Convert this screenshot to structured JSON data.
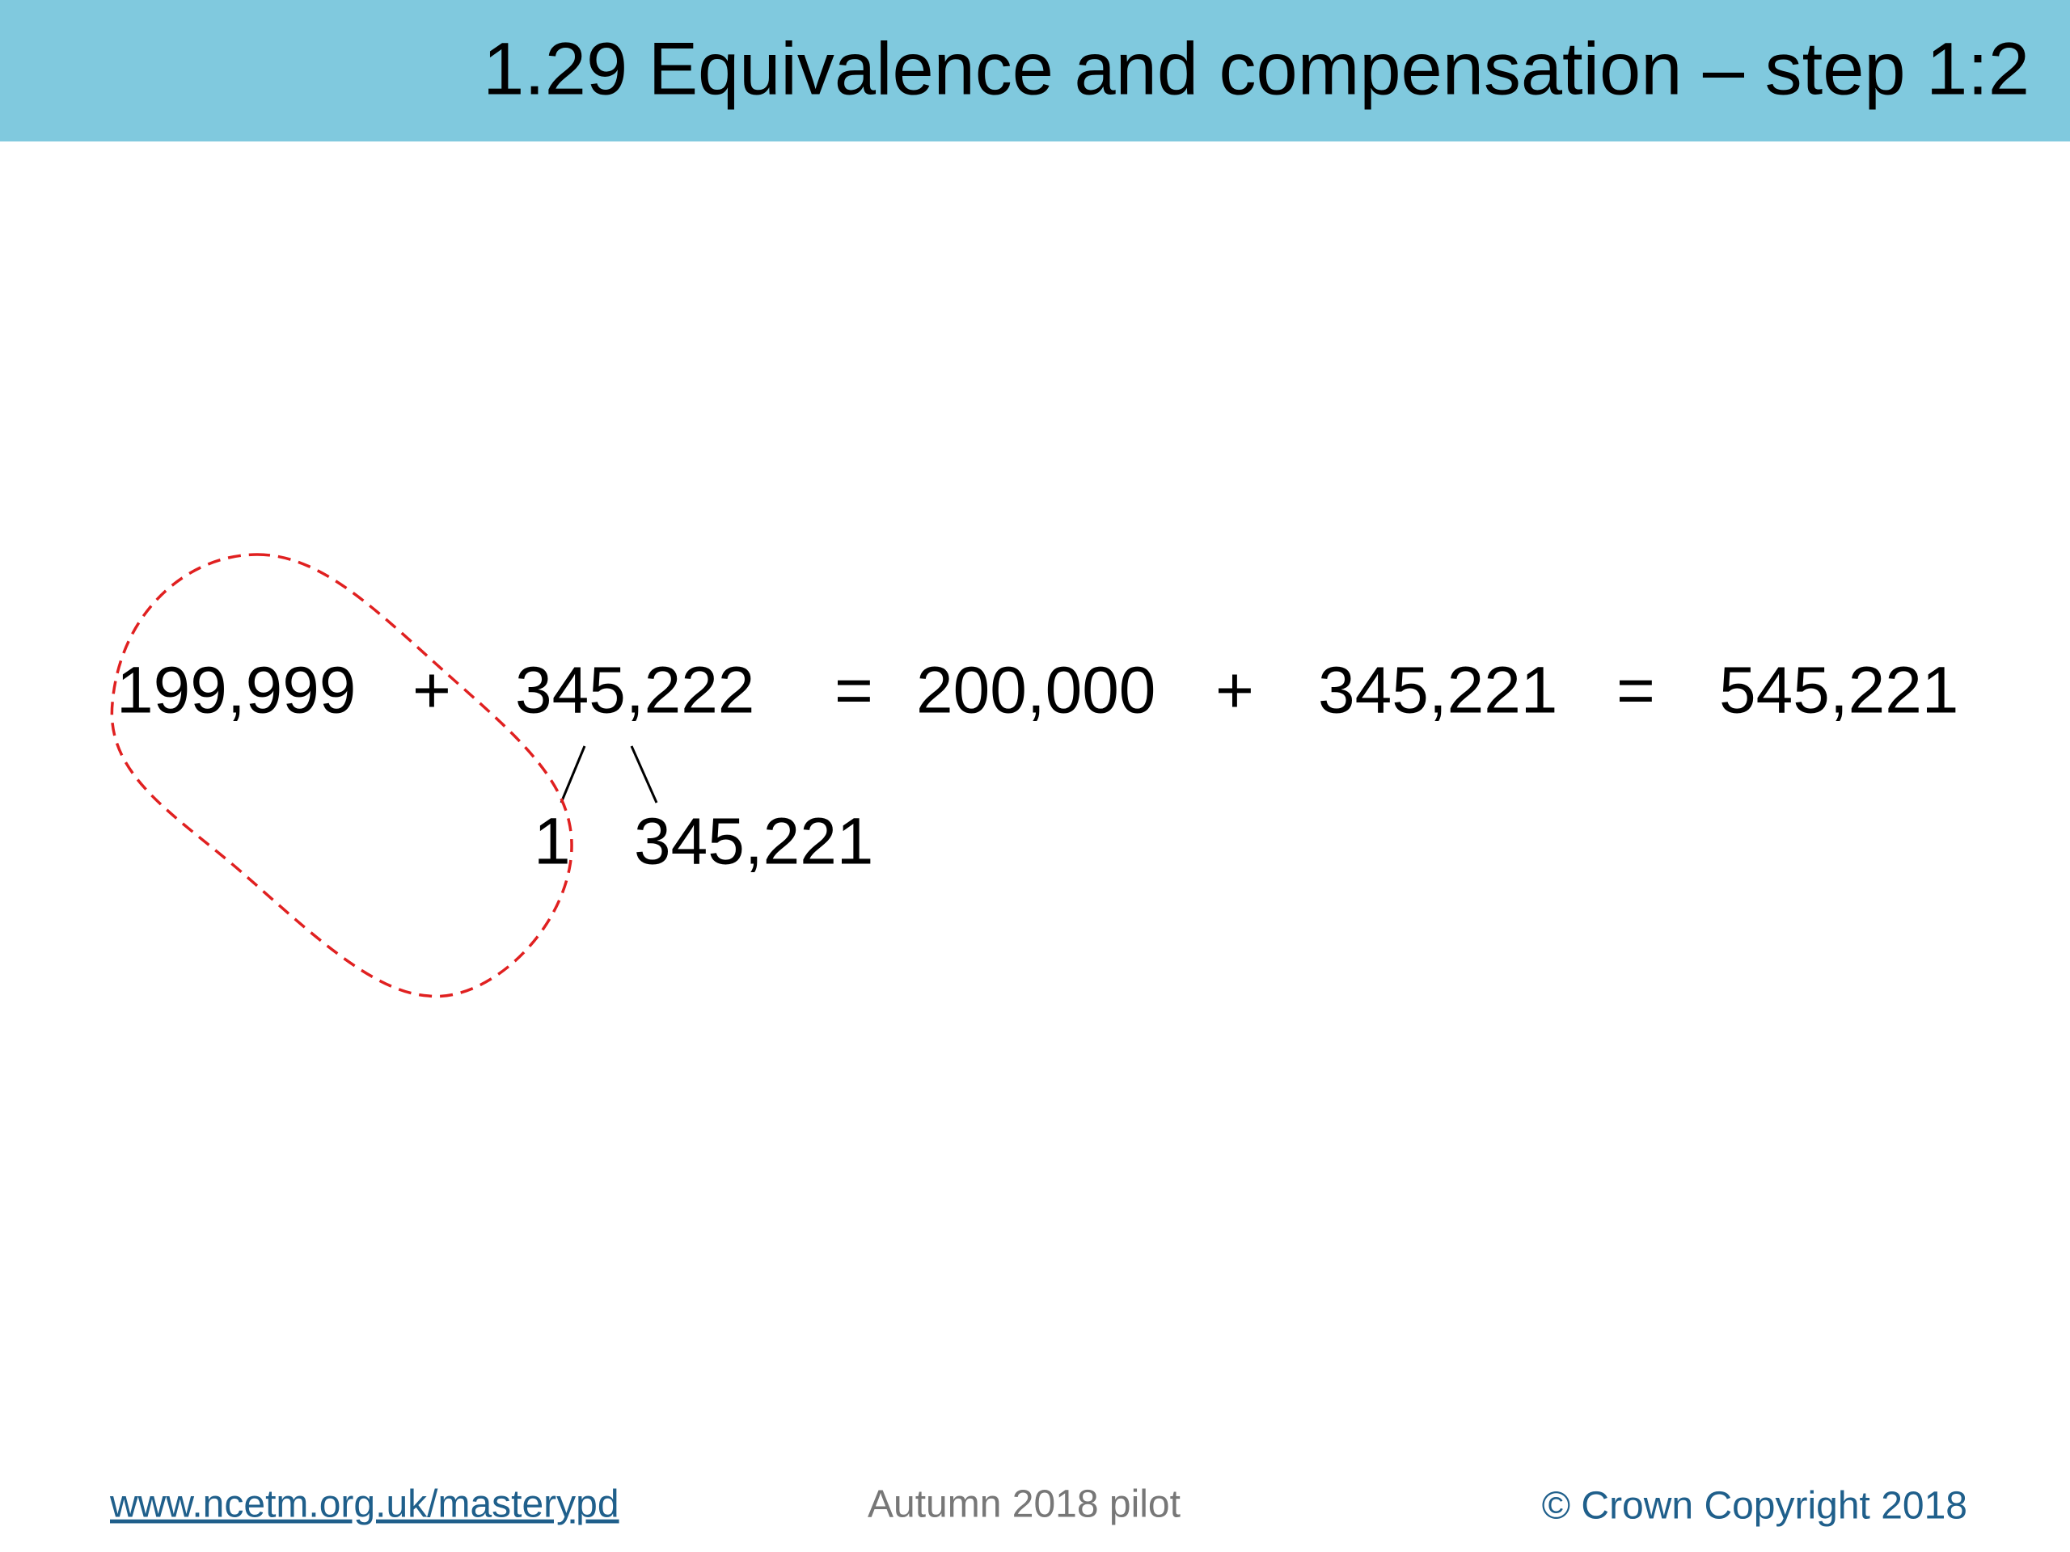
{
  "header": {
    "title": "1.29 Equivalence and compensation – step 1:2"
  },
  "equation": {
    "terms": [
      "199,999",
      "+",
      "345,222",
      "=",
      "200,000",
      "+",
      "345,221",
      "=",
      "545,221"
    ]
  },
  "partition": {
    "parts": [
      "1",
      "345,221"
    ]
  },
  "footer": {
    "link": "www.ncetm.org.uk/masterypd",
    "center": "Autumn 2018 pilot",
    "copyright": "© Crown Copyright 2018"
  }
}
